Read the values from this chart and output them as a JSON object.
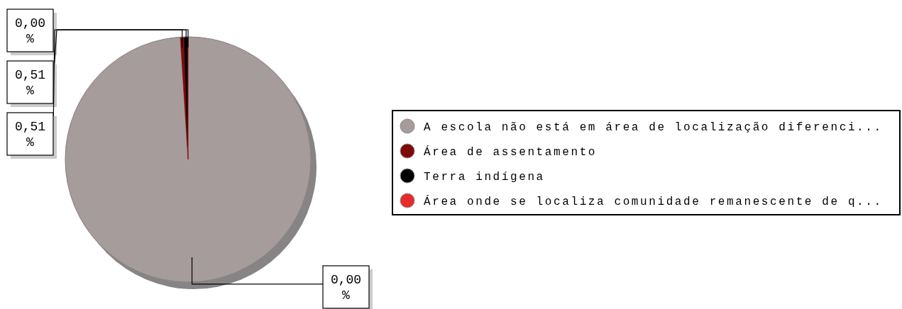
{
  "chart_data": {
    "type": "pie",
    "categories": [
      "A escola não está em área de localização diferenci...",
      "Área de assentamento",
      "Terra indígena",
      "Área onde se localiza comunidade remanescente de q..."
    ],
    "values": [
      98.98,
      0.51,
      0.51,
      0.0
    ],
    "colors": [
      "#a69c9c",
      "#800a0a",
      "#000000",
      "#e82a2a"
    ],
    "annotations": [
      "0,00 %",
      "0,51 %",
      "0,51 %",
      "0,00 %"
    ],
    "legend": "right"
  }
}
